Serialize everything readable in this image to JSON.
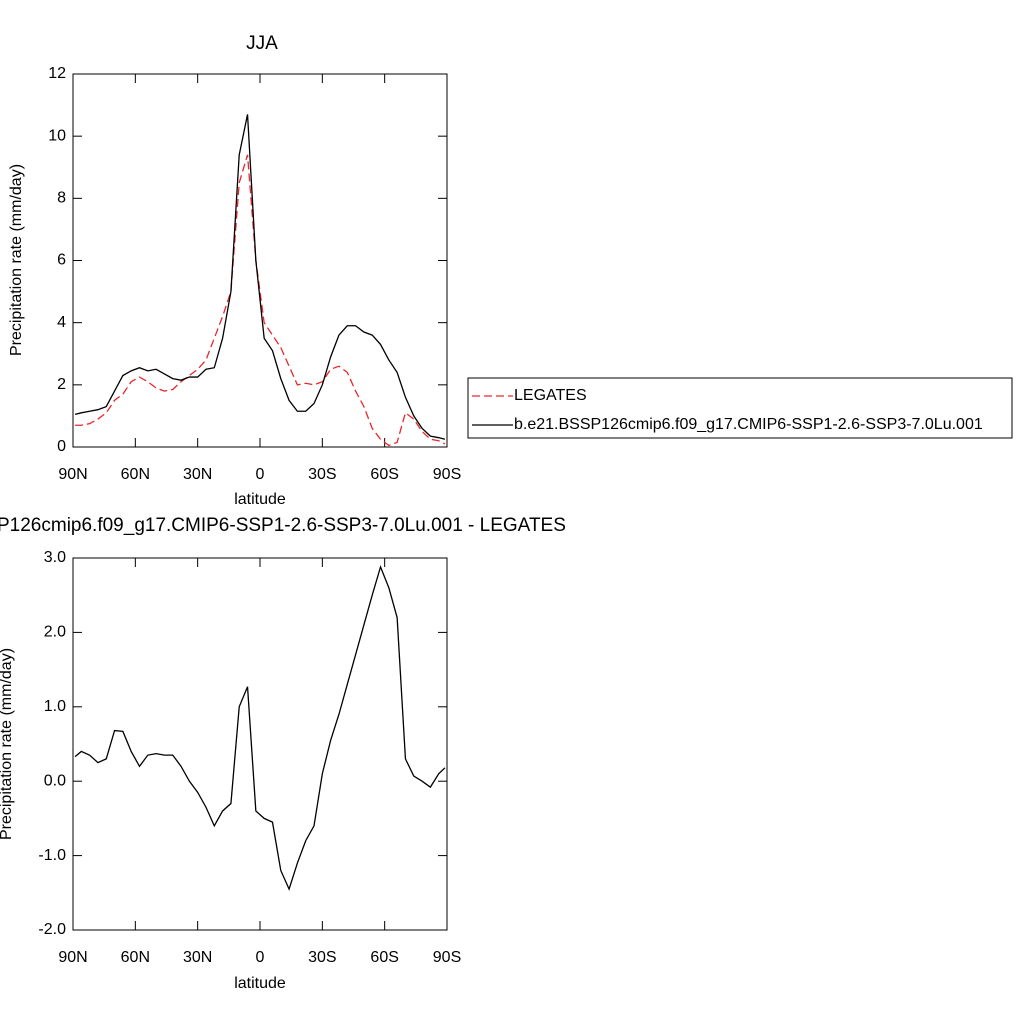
{
  "chart_data": [
    {
      "type": "line",
      "title": "JJA",
      "x_label": "latitude",
      "y_label": "Precipitation rate (mm/day)",
      "x": [
        89,
        86,
        82,
        78,
        74,
        70,
        66,
        62,
        58,
        54,
        50,
        46,
        42,
        38,
        34,
        30,
        26,
        22,
        18,
        14,
        10,
        6,
        2,
        -2,
        -6,
        -10,
        -14,
        -18,
        -22,
        -26,
        -30,
        -34,
        -38,
        -42,
        -46,
        -50,
        -54,
        -58,
        -62,
        -66,
        -70,
        -74,
        -78,
        -82,
        -86,
        -89
      ],
      "series": [
        {
          "name": "LEGATES",
          "color": "#e8262b",
          "dash": true,
          "values": [
            0.7,
            0.7,
            0.75,
            0.9,
            1.1,
            1.5,
            1.7,
            2.1,
            2.25,
            2.1,
            1.9,
            1.8,
            1.85,
            2.1,
            2.3,
            2.5,
            2.8,
            3.5,
            4.2,
            5.0,
            8.5,
            9.4,
            6.0,
            4.0,
            3.6,
            3.2,
            2.6,
            2.0,
            2.05,
            2.0,
            2.1,
            2.5,
            2.6,
            2.4,
            1.8,
            1.3,
            0.6,
            0.25,
            0.05,
            0.15,
            1.1,
            0.9,
            0.5,
            0.25,
            0.2,
            0.1
          ]
        },
        {
          "name": "b.e21.BSSP126cmip6.f09_g17.CMIP6-SSP1-2.6-SSP3-7.0Lu.001",
          "color": "#000000",
          "dash": false,
          "values": [
            1.05,
            1.1,
            1.15,
            1.2,
            1.3,
            1.8,
            2.3,
            2.45,
            2.55,
            2.45,
            2.5,
            2.35,
            2.2,
            2.15,
            2.25,
            2.25,
            2.5,
            2.55,
            3.5,
            5.0,
            9.4,
            10.7,
            6.0,
            3.5,
            3.1,
            2.2,
            1.5,
            1.15,
            1.15,
            1.4,
            2.0,
            2.9,
            3.6,
            3.9,
            3.9,
            3.7,
            3.6,
            3.3,
            2.8,
            2.4,
            1.6,
            1.0,
            0.6,
            0.35,
            0.3,
            0.25
          ]
        }
      ],
      "xlim": [
        90,
        -90
      ],
      "xticks": [
        {
          "value": 90,
          "label": "90N"
        },
        {
          "value": 60,
          "label": "60N"
        },
        {
          "value": 30,
          "label": "30N"
        },
        0,
        {
          "value": -30,
          "label": "30S"
        },
        {
          "value": -60,
          "label": "60S"
        },
        {
          "value": -90,
          "label": "90S"
        }
      ],
      "ylim": [
        0,
        12
      ],
      "yticks": [
        0,
        2,
        4,
        6,
        8,
        10,
        12
      ],
      "legend": "right"
    },
    {
      "type": "line",
      "title": "P126cmip6.f09_g17.CMIP6-SSP1-2.6-SSP3-7.0Lu.001 - LEGATES",
      "x_label": "latitude",
      "y_label": "Precipitation rate (mm/day)",
      "x": [
        89,
        86,
        82,
        78,
        74,
        70,
        66,
        62,
        58,
        54,
        50,
        46,
        42,
        38,
        34,
        30,
        26,
        22,
        18,
        14,
        10,
        6,
        2,
        -2,
        -6,
        -10,
        -14,
        -18,
        -22,
        -26,
        -30,
        -34,
        -38,
        -42,
        -46,
        -50,
        -54,
        -58,
        -62,
        -66,
        -70,
        -74,
        -78,
        -82,
        -86,
        -89
      ],
      "color": "#000000",
      "values": [
        0.33,
        0.4,
        0.35,
        0.25,
        0.3,
        0.68,
        0.67,
        0.4,
        0.2,
        0.35,
        0.37,
        0.35,
        0.35,
        0.2,
        0.0,
        -0.15,
        -0.35,
        -0.6,
        -0.4,
        -0.3,
        1.0,
        1.27,
        -0.4,
        -0.5,
        -0.55,
        -1.2,
        -1.45,
        -1.1,
        -0.8,
        -0.6,
        0.1,
        0.55,
        0.9,
        1.3,
        1.7,
        2.1,
        2.5,
        2.88,
        2.6,
        2.2,
        0.3,
        0.07,
        0.0,
        -0.08,
        0.1,
        0.18
      ],
      "xlim": [
        90,
        -90
      ],
      "xticks": [
        {
          "value": 90,
          "label": "90N"
        },
        {
          "value": 60,
          "label": "60N"
        },
        {
          "value": 30,
          "label": "30N"
        },
        0,
        {
          "value": -30,
          "label": "30S"
        },
        {
          "value": -60,
          "label": "60S"
        },
        {
          "value": -90,
          "label": "90S"
        }
      ],
      "ylim": [
        -2,
        3
      ],
      "yticks": [
        {
          "value": -2,
          "label": "-2.0"
        },
        {
          "value": -1,
          "label": "-1.0"
        },
        {
          "value": 0,
          "label": "0.0"
        },
        {
          "value": 1,
          "label": "1.0"
        },
        {
          "value": 2,
          "label": "2.0"
        },
        {
          "value": 3,
          "label": "3.0"
        }
      ]
    }
  ]
}
